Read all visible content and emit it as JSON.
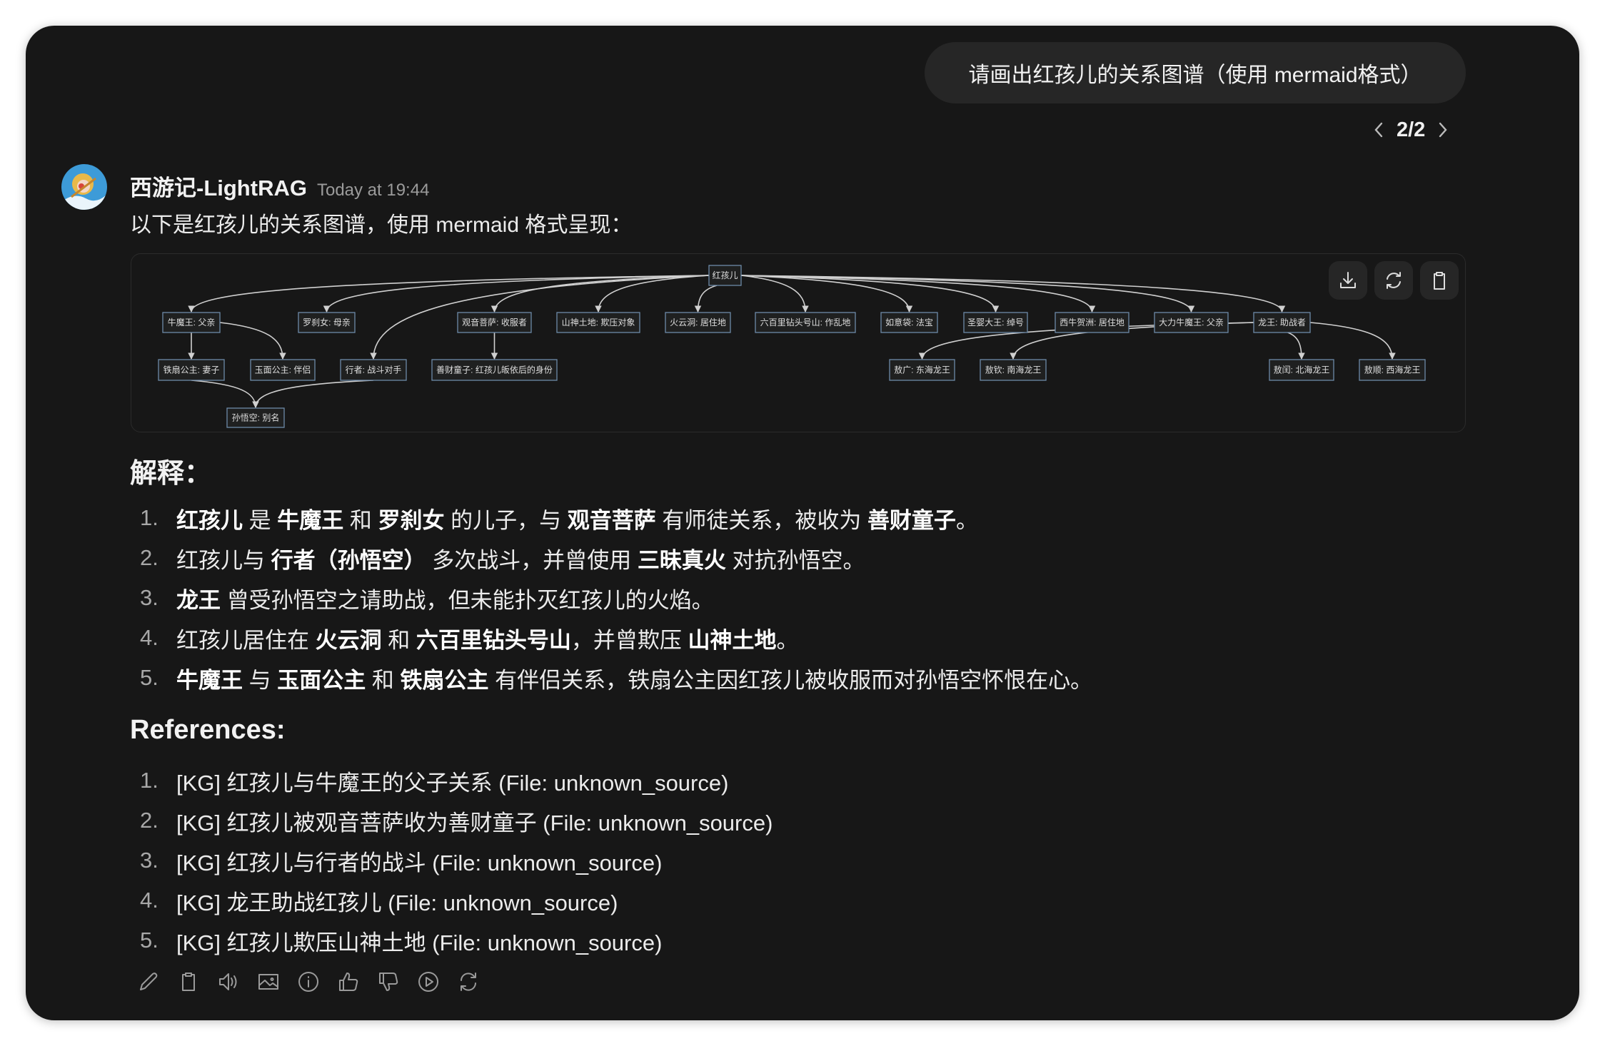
{
  "user_message": "请画出红孩儿的关系图谱（使用 mermaid格式）",
  "pager": {
    "label": "2/2"
  },
  "assistant": {
    "name": "西游记-LightRAG",
    "timestamp": "Today at 19:44",
    "intro": "以下是红孩儿的关系图谱，使用 mermaid 格式呈现："
  },
  "diagram": {
    "nodes": [
      {
        "id": "root",
        "label": "红孩儿"
      },
      {
        "id": "nmw",
        "label": "牛魔王: 父亲"
      },
      {
        "id": "lcn",
        "label": "罗刹女: 母亲"
      },
      {
        "id": "gy",
        "label": "观音菩萨: 收服者"
      },
      {
        "id": "stdi",
        "label": "山神土地: 欺压对象"
      },
      {
        "id": "hyd",
        "label": "火云洞: 居住地"
      },
      {
        "id": "lbl",
        "label": "六百里钻头号山: 作乱地"
      },
      {
        "id": "ryd",
        "label": "如意袋: 法宝"
      },
      {
        "id": "sy",
        "label": "圣婴大王: 绰号"
      },
      {
        "id": "xn",
        "label": "西牛贺洲: 居住地"
      },
      {
        "id": "dl",
        "label": "大力牛魔王: 父亲"
      },
      {
        "id": "lw",
        "label": "龙王: 助战者"
      },
      {
        "id": "tsgz",
        "label": "铁扇公主: 妻子"
      },
      {
        "id": "ymgz",
        "label": "玉面公主: 伴侣"
      },
      {
        "id": "xz",
        "label": "行者: 战斗对手"
      },
      {
        "id": "sc",
        "label": "善财童子: 红孩儿皈依后的身份"
      },
      {
        "id": "ag",
        "label": "敖广: 东海龙王"
      },
      {
        "id": "aq",
        "label": "敖钦: 南海龙王"
      },
      {
        "id": "ar",
        "label": "敖闰: 北海龙王"
      },
      {
        "id": "as",
        "label": "敖顺: 西海龙王"
      },
      {
        "id": "swk",
        "label": "孙悟空: 别名"
      }
    ],
    "edges": [
      [
        "root",
        "nmw"
      ],
      [
        "root",
        "lcn"
      ],
      [
        "root",
        "xz"
      ],
      [
        "root",
        "gy"
      ],
      [
        "root",
        "stdi"
      ],
      [
        "root",
        "hyd"
      ],
      [
        "root",
        "lbl"
      ],
      [
        "root",
        "ryd"
      ],
      [
        "root",
        "sy"
      ],
      [
        "root",
        "xn"
      ],
      [
        "root",
        "dl"
      ],
      [
        "root",
        "lw"
      ],
      [
        "nmw",
        "tsgz"
      ],
      [
        "nmw",
        "ymgz"
      ],
      [
        "gy",
        "sc"
      ],
      [
        "tsgz",
        "swk"
      ],
      [
        "xz",
        "swk"
      ],
      [
        "lw",
        "ag"
      ],
      [
        "lw",
        "aq"
      ],
      [
        "lw",
        "ar"
      ],
      [
        "lw",
        "as"
      ]
    ],
    "buttons": [
      {
        "name": "download-button",
        "icon": "download-icon"
      },
      {
        "name": "rerender-button",
        "icon": "refresh-icon"
      },
      {
        "name": "copy-button",
        "icon": "clipboard-icon"
      }
    ]
  },
  "explanation": {
    "heading": "解释：",
    "items": [
      [
        {
          "t": "红孩儿",
          "b": true
        },
        {
          "t": " 是 "
        },
        {
          "t": "牛魔王",
          "b": true
        },
        {
          "t": " 和 "
        },
        {
          "t": "罗刹女",
          "b": true
        },
        {
          "t": " 的儿子，与 "
        },
        {
          "t": "观音菩萨",
          "b": true
        },
        {
          "t": " 有师徒关系，被收为 "
        },
        {
          "t": "善财童子",
          "b": true
        },
        {
          "t": "。"
        }
      ],
      [
        {
          "t": "红孩儿与 "
        },
        {
          "t": "行者（孙悟空）",
          "b": true
        },
        {
          "t": " 多次战斗，并曾使用 "
        },
        {
          "t": "三昧真火",
          "b": true
        },
        {
          "t": " 对抗孙悟空。"
        }
      ],
      [
        {
          "t": "龙王",
          "b": true
        },
        {
          "t": " 曾受孙悟空之请助战，但未能扑灭红孩儿的火焰。"
        }
      ],
      [
        {
          "t": "红孩儿居住在 "
        },
        {
          "t": "火云洞",
          "b": true
        },
        {
          "t": " 和 "
        },
        {
          "t": "六百里钻头号山",
          "b": true
        },
        {
          "t": "，并曾欺压 "
        },
        {
          "t": "山神土地",
          "b": true
        },
        {
          "t": "。"
        }
      ],
      [
        {
          "t": "牛魔王",
          "b": true
        },
        {
          "t": " 与 "
        },
        {
          "t": "玉面公主",
          "b": true
        },
        {
          "t": " 和 "
        },
        {
          "t": "铁扇公主",
          "b": true
        },
        {
          "t": " 有伴侣关系，铁扇公主因红孩儿被收服而对孙悟空怀恨在心。"
        }
      ]
    ]
  },
  "references": {
    "heading": "References:",
    "items": [
      "[KG] 红孩儿与牛魔王的父子关系 (File: unknown_source)",
      "[KG] 红孩儿被观音菩萨收为善财童子 (File: unknown_source)",
      "[KG] 红孩儿与行者的战斗 (File: unknown_source)",
      "[KG] 龙王助战红孩儿 (File: unknown_source)",
      "[KG] 红孩儿欺压山神土地 (File: unknown_source)"
    ]
  },
  "actions": [
    "edit-icon",
    "copy-icon",
    "read-aloud-icon",
    "image-icon",
    "info-icon",
    "thumbs-up-icon",
    "thumbs-down-icon",
    "play-icon",
    "regenerate-icon"
  ],
  "colors": {
    "background": "#171717",
    "bubble": "#262626",
    "node_fill": "#1f2020",
    "node_stroke": "#6d8aa8",
    "edge": "#d0d0d0"
  }
}
